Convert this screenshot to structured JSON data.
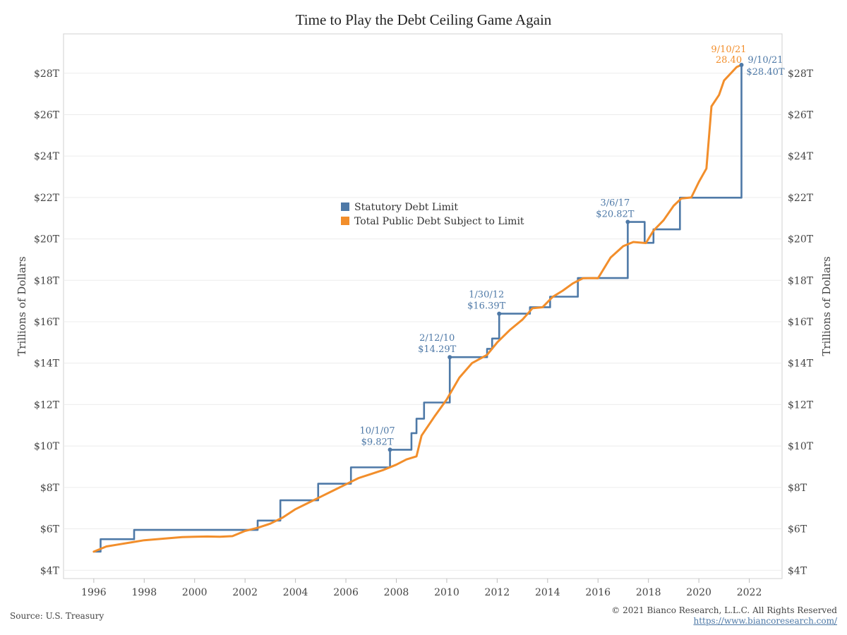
{
  "chart_data": {
    "type": "line",
    "title": "Time to Play the Debt Ceiling Game Again",
    "ylabel_left": "Trillions of Dollars",
    "ylabel_right": "Trillions of Dollars",
    "x_ticks": [
      "1996",
      "1998",
      "2000",
      "2002",
      "2004",
      "2006",
      "2008",
      "2010",
      "2012",
      "2014",
      "2016",
      "2018",
      "2020",
      "2022"
    ],
    "y_ticks": [
      "$4T",
      "$6T",
      "$8T",
      "$10T",
      "$12T",
      "$14T",
      "$16T",
      "$18T",
      "$20T",
      "$22T",
      "$24T",
      "$26T",
      "$28T"
    ],
    "xlim": [
      1994.8,
      2023.3
    ],
    "ylim": [
      3.6,
      29.9
    ],
    "grid": true,
    "legend_position": "center",
    "colors": {
      "limit": "#4e79a7",
      "debt": "#f28e2b"
    },
    "series": [
      {
        "name": "Statutory Debt Limit",
        "style": "step",
        "x": [
          1996.0,
          1996.27,
          1997.6,
          2002.5,
          2003.4,
          2004.9,
          2006.2,
          2007.75,
          2008.6,
          2008.8,
          2009.1,
          2010.12,
          2011.6,
          2011.8,
          2012.08,
          2013.3,
          2013.8,
          2014.1,
          2015.2,
          2017.18,
          2017.85,
          2018.2,
          2019.25,
          2021.69
        ],
        "y": [
          4.9,
          5.5,
          5.95,
          6.4,
          7.38,
          8.18,
          8.97,
          9.82,
          10.62,
          11.32,
          12.1,
          14.29,
          14.69,
          15.19,
          16.39,
          16.7,
          16.7,
          17.21,
          18.11,
          20.82,
          19.81,
          20.46,
          21.99,
          28.4
        ]
      },
      {
        "name": "Total Public Debt Subject to Limit",
        "style": "line",
        "x": [
          1996.0,
          1996.5,
          1997.0,
          1997.5,
          1998.0,
          1998.5,
          1999.0,
          1999.5,
          2000.0,
          2000.5,
          2001.0,
          2001.5,
          2002.0,
          2002.5,
          2003.0,
          2003.5,
          2004.0,
          2004.5,
          2005.0,
          2005.5,
          2006.0,
          2006.5,
          2007.0,
          2007.5,
          2008.0,
          2008.4,
          2008.8,
          2009.0,
          2009.5,
          2010.0,
          2010.5,
          2011.0,
          2011.6,
          2012.0,
          2012.5,
          2013.0,
          2013.4,
          2013.8,
          2014.2,
          2014.6,
          2015.0,
          2015.4,
          2015.8,
          2016.0,
          2016.5,
          2017.0,
          2017.4,
          2017.9,
          2018.2,
          2018.6,
          2019.0,
          2019.3,
          2019.7,
          2020.0,
          2020.3,
          2020.5,
          2020.8,
          2021.0,
          2021.5,
          2021.69
        ],
        "y": [
          4.9,
          5.15,
          5.25,
          5.35,
          5.45,
          5.5,
          5.55,
          5.6,
          5.62,
          5.63,
          5.62,
          5.65,
          5.9,
          6.05,
          6.25,
          6.55,
          6.95,
          7.25,
          7.55,
          7.85,
          8.15,
          8.45,
          8.65,
          8.85,
          9.1,
          9.35,
          9.5,
          10.5,
          11.4,
          12.25,
          13.3,
          14.0,
          14.4,
          15.0,
          15.6,
          16.1,
          16.65,
          16.7,
          17.2,
          17.5,
          17.85,
          18.1,
          18.11,
          18.1,
          19.1,
          19.65,
          19.85,
          19.8,
          20.4,
          20.9,
          21.6,
          21.95,
          22.0,
          22.75,
          23.4,
          26.4,
          26.95,
          27.65,
          28.3,
          28.4
        ]
      }
    ],
    "annotations": [
      {
        "date": "10/1/07",
        "value": "$9.82T",
        "x": 2007.75,
        "y": 9.82,
        "series": "limit"
      },
      {
        "date": "2/12/10",
        "value": "$14.29T",
        "x": 2010.12,
        "y": 14.29,
        "series": "limit"
      },
      {
        "date": "1/30/12",
        "value": "$16.39T",
        "x": 2012.08,
        "y": 16.39,
        "series": "limit"
      },
      {
        "date": "3/6/17",
        "value": "$20.82T",
        "x": 2017.18,
        "y": 20.82,
        "series": "limit"
      },
      {
        "date": "9/10/21",
        "value": "$28.40T",
        "x": 2021.69,
        "y": 28.4,
        "series": "limit"
      },
      {
        "date": "9/10/21",
        "value": "28.40",
        "x": 2021.69,
        "y": 28.4,
        "series": "debt"
      }
    ]
  },
  "footer": {
    "source": "Source: U.S. Treasury",
    "copyright": "© 2021 Bianco Research, L.L.C. All Rights Reserved",
    "link": "https://www.biancoresearch.com/"
  }
}
